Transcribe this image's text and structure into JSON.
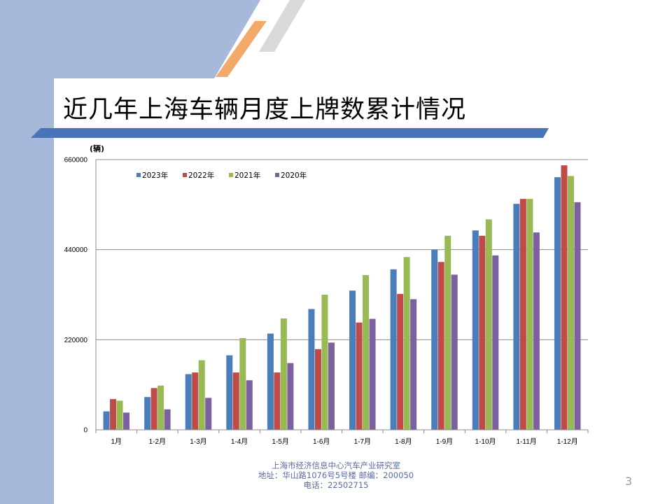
{
  "slide": {
    "title": "近几年上海车辆月度上牌数累计情况",
    "page_number": "3",
    "footer": {
      "line1": "上海市经济信息中心汽车产业研究室",
      "line2": "地址：华山路1076号5号楼   邮编：200050",
      "line3": "电话：22502715"
    },
    "colors": {
      "sidebar": "#a7b9da",
      "title_bar": "#4a73b8",
      "accent_orange": "#f2a96a",
      "accent_gray": "#d9d9d9"
    }
  },
  "chart_data": {
    "type": "bar",
    "ylabel": "(辆)",
    "ylim": [
      0,
      660000
    ],
    "yticks": [
      0,
      220000,
      440000,
      660000
    ],
    "grid": true,
    "legend_position": "top-left",
    "categories": [
      "1月",
      "1-2月",
      "1-3月",
      "1-4月",
      "1-5月",
      "1-6月",
      "1-7月",
      "1-8月",
      "1-9月",
      "1-10月",
      "1-11月",
      "1-12月"
    ],
    "series": [
      {
        "name": "2023年",
        "color": "#4a7ebb",
        "values": [
          45000,
          80000,
          136000,
          182000,
          235000,
          295000,
          340000,
          392000,
          440000,
          487000,
          552000,
          617000
        ]
      },
      {
        "name": "2022年",
        "color": "#be4b48",
        "values": [
          75000,
          102000,
          140000,
          140000,
          140000,
          197000,
          262000,
          332000,
          410000,
          474000,
          564000,
          646000
        ]
      },
      {
        "name": "2021年",
        "color": "#98b954",
        "values": [
          71000,
          108000,
          170000,
          224000,
          272000,
          330000,
          378000,
          422000,
          474000,
          514000,
          564000,
          620000
        ]
      },
      {
        "name": "2020年",
        "color": "#7d60a0",
        "values": [
          42000,
          50000,
          78000,
          121000,
          163000,
          213000,
          271000,
          319000,
          379000,
          426000,
          482000,
          556000
        ]
      }
    ]
  }
}
